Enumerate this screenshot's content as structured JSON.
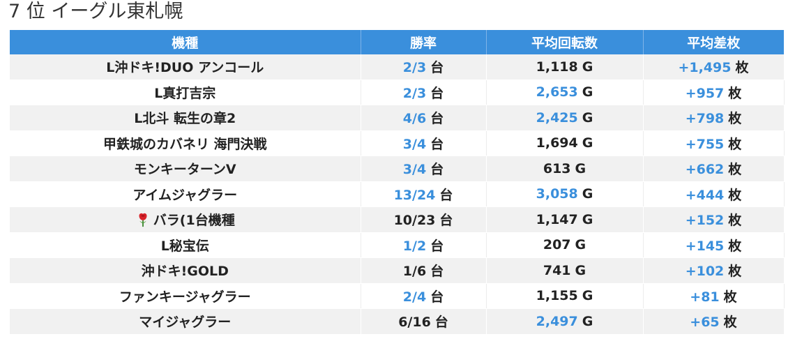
{
  "page": {
    "title": "7 位 イーグル東札幌"
  },
  "table": {
    "headers": [
      "機種",
      "勝率",
      "平均回転数",
      "平均差枚"
    ],
    "rows": [
      {
        "machine": "L沖ドキ!DUO アンコール",
        "win_rate": "2/3",
        "win_unit": "台",
        "win_hl": true,
        "spins": "1,118",
        "spins_unit": "G",
        "spins_hl": false,
        "diff": "+1,495",
        "diff_unit": "枚"
      },
      {
        "machine": "L真打吉宗",
        "win_rate": "2/3",
        "win_unit": "台",
        "win_hl": true,
        "spins": "2,653",
        "spins_unit": "G",
        "spins_hl": true,
        "diff": "+957",
        "diff_unit": "枚"
      },
      {
        "machine": "L北斗 転生の章2",
        "win_rate": "4/6",
        "win_unit": "台",
        "win_hl": true,
        "spins": "2,425",
        "spins_unit": "G",
        "spins_hl": true,
        "diff": "+798",
        "diff_unit": "枚"
      },
      {
        "machine": "甲鉄城のカバネリ 海門決戦",
        "win_rate": "3/4",
        "win_unit": "台",
        "win_hl": true,
        "spins": "1,694",
        "spins_unit": "G",
        "spins_hl": false,
        "diff": "+755",
        "diff_unit": "枚"
      },
      {
        "machine": "モンキーターンV",
        "win_rate": "3/4",
        "win_unit": "台",
        "win_hl": true,
        "spins": "613",
        "spins_unit": "G",
        "spins_hl": false,
        "diff": "+662",
        "diff_unit": "枚"
      },
      {
        "machine": "アイムジャグラー",
        "win_rate": "13/24",
        "win_unit": "台",
        "win_hl": true,
        "spins": "3,058",
        "spins_unit": "G",
        "spins_hl": true,
        "diff": "+444",
        "diff_unit": "枚"
      },
      {
        "machine": "バラ(1台機種",
        "win_rate": "10/23",
        "win_unit": "台",
        "win_hl": false,
        "spins": "1,147",
        "spins_unit": "G",
        "spins_hl": false,
        "diff": "+152",
        "diff_unit": "枚",
        "icon": "rose-icon"
      },
      {
        "machine": "L秘宝伝",
        "win_rate": "1/2",
        "win_unit": "台",
        "win_hl": true,
        "spins": "207",
        "spins_unit": "G",
        "spins_hl": false,
        "diff": "+145",
        "diff_unit": "枚"
      },
      {
        "machine": "沖ドキ!GOLD",
        "win_rate": "1/6",
        "win_unit": "台",
        "win_hl": false,
        "spins": "741",
        "spins_unit": "G",
        "spins_hl": false,
        "diff": "+102",
        "diff_unit": "枚"
      },
      {
        "machine": "ファンキージャグラー",
        "win_rate": "2/4",
        "win_unit": "台",
        "win_hl": true,
        "spins": "1,155",
        "spins_unit": "G",
        "spins_hl": false,
        "diff": "+81",
        "diff_unit": "枚"
      },
      {
        "machine": "マイジャグラー",
        "win_rate": "6/16",
        "win_unit": "台",
        "win_hl": false,
        "spins": "2,497",
        "spins_unit": "G",
        "spins_hl": true,
        "diff": "+65",
        "diff_unit": "枚"
      }
    ]
  },
  "colors": {
    "accent": "#3a8fdc",
    "header_bg": "#3a8fdc",
    "stripe": "#f1f1f1",
    "text": "#222222"
  }
}
